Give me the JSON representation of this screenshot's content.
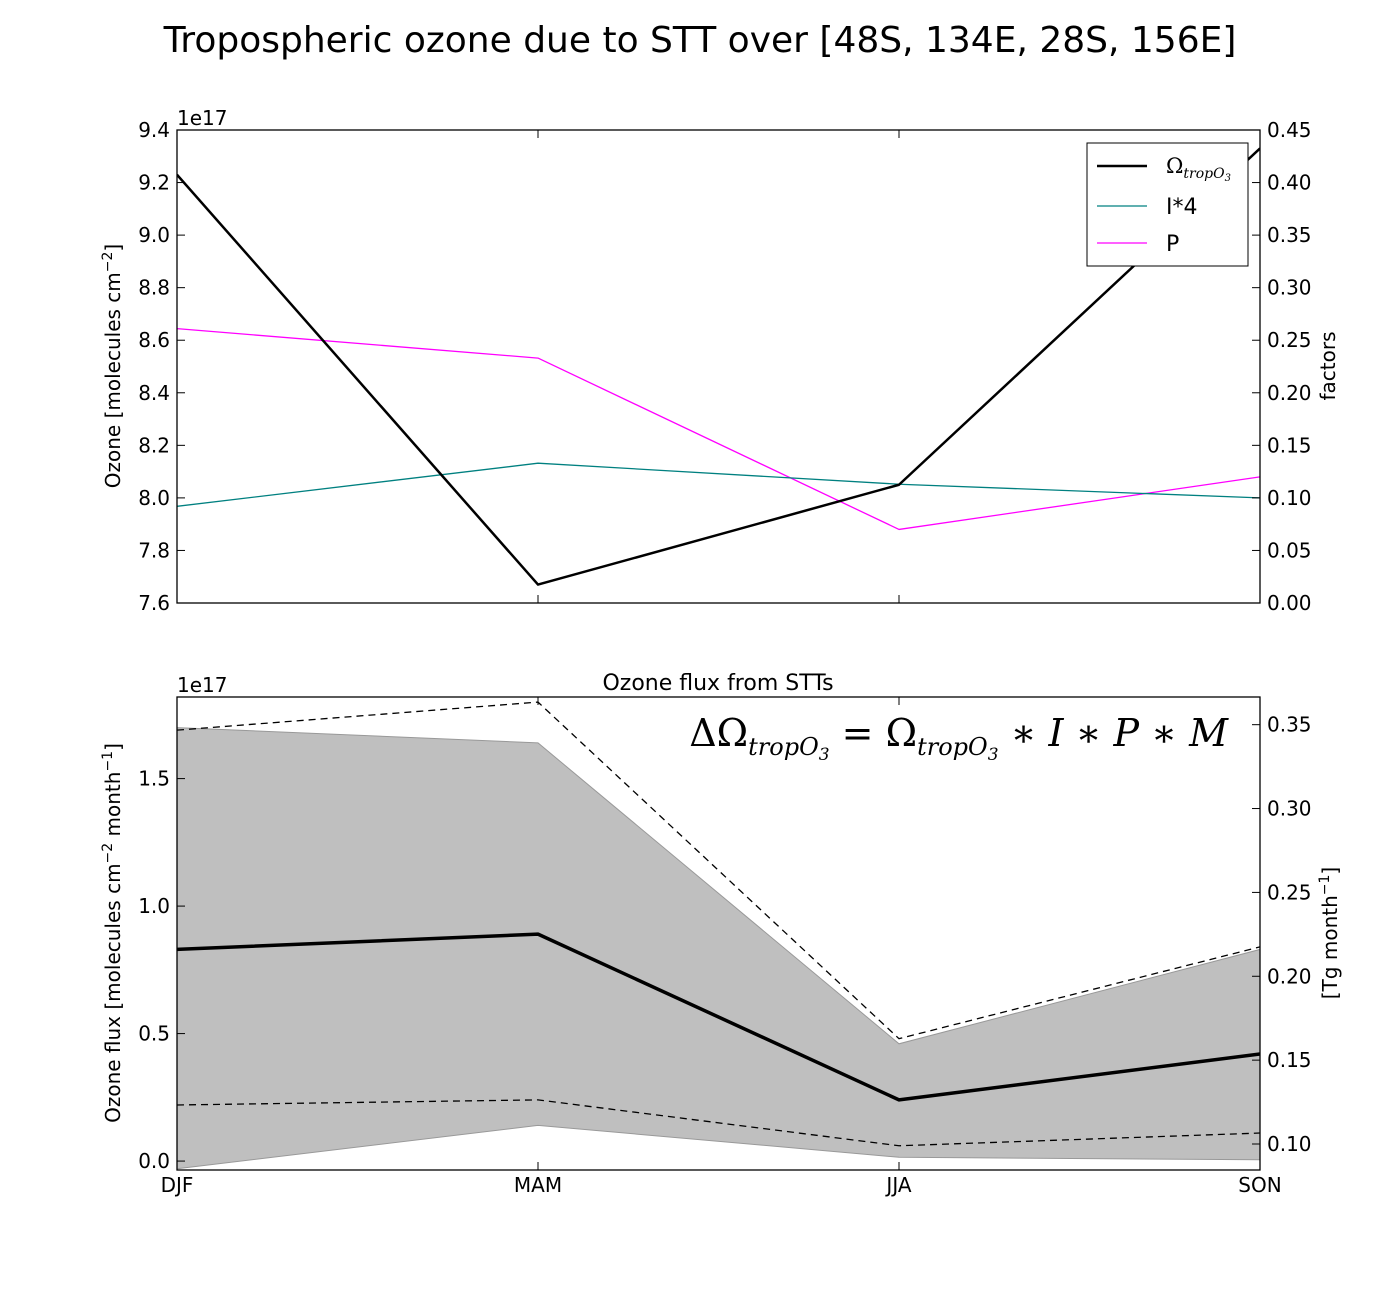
{
  "figure_title": "Tropospheric ozone due to STT over [48S, 134E, 28S, 156E]",
  "chart_data": [
    {
      "type": "line",
      "title": "",
      "categories": [
        "DJF",
        "MAM",
        "JJA",
        "SON"
      ],
      "left_axis": {
        "label": "Ozone [molecules cm",
        "label_sup": "−2",
        "label_end": "]",
        "multiplier": "1e17",
        "range": [
          7.6,
          9.4
        ],
        "ticks": [
          "7.6",
          "7.8",
          "8.0",
          "8.2",
          "8.4",
          "8.6",
          "8.8",
          "9.0",
          "9.2",
          "9.4"
        ]
      },
      "right_axis": {
        "label": "factors",
        "range": [
          0.0,
          0.45
        ],
        "ticks": [
          "0.00",
          "0.05",
          "0.10",
          "0.15",
          "0.20",
          "0.25",
          "0.30",
          "0.35",
          "0.40",
          "0.45"
        ]
      },
      "legend_placement": "top-right",
      "grid": false,
      "series": [
        {
          "name": "Ω",
          "name_sub": "tropO",
          "name_subsub": "3",
          "axis": "left",
          "color": "#000000",
          "width": 2.5,
          "values": [
            9.23,
            7.67,
            8.05,
            9.33
          ]
        },
        {
          "name": "I*4",
          "axis": "right",
          "color": "#008080",
          "width": 1.3,
          "values": [
            0.092,
            0.133,
            0.113,
            0.1
          ]
        },
        {
          "name": "P",
          "axis": "right",
          "color": "#ff00ff",
          "width": 1.3,
          "values": [
            0.261,
            0.233,
            0.07,
            0.12
          ]
        }
      ]
    },
    {
      "type": "area",
      "title": "Ozone flux from STTs",
      "categories": [
        "DJF",
        "MAM",
        "JJA",
        "SON"
      ],
      "left_axis": {
        "label": "Ozone flux [molecules cm",
        "label_sup1": "−2",
        "label_mid": " month",
        "label_sup2": "−1",
        "label_end": "]",
        "multiplier": "1e17",
        "range": [
          -0.035,
          1.82
        ],
        "ticks": [
          "0.0",
          "0.5",
          "1.0",
          "1.5"
        ],
        "tick_values": [
          0.0,
          0.5,
          1.0,
          1.5
        ]
      },
      "right_axis": {
        "label": "[Tg month",
        "label_sup": "−1",
        "label_end": "]",
        "range": [
          0.0845,
          0.3665
        ],
        "ticks": [
          "0.10",
          "0.15",
          "0.20",
          "0.25",
          "0.30",
          "0.35"
        ],
        "tick_values": [
          0.1,
          0.15,
          0.2,
          0.25,
          0.3,
          0.35
        ]
      },
      "annotation": {
        "delta": "ΔΩ",
        "lhs_sub": "tropO",
        "lhs_subsub": "3",
        "equals": " = Ω",
        "rhs_sub": "tropO",
        "rhs_subsub": "3",
        "rhs_rest": " ∗ I ∗ P ∗ M"
      },
      "shaded_band": {
        "color": "#bfbfbf",
        "edge": "#999999",
        "upper": [
          1.7,
          1.64,
          0.46,
          0.83
        ],
        "lower": [
          -0.03,
          0.14,
          0.015,
          0.005
        ]
      },
      "mean": {
        "color": "#000000",
        "width": 3.5,
        "values": [
          0.83,
          0.89,
          0.24,
          0.42
        ]
      },
      "dashed_upper": [
        1.69,
        1.8,
        0.48,
        0.84
      ],
      "dashed_lower": [
        0.22,
        0.24,
        0.06,
        0.11
      ]
    }
  ]
}
